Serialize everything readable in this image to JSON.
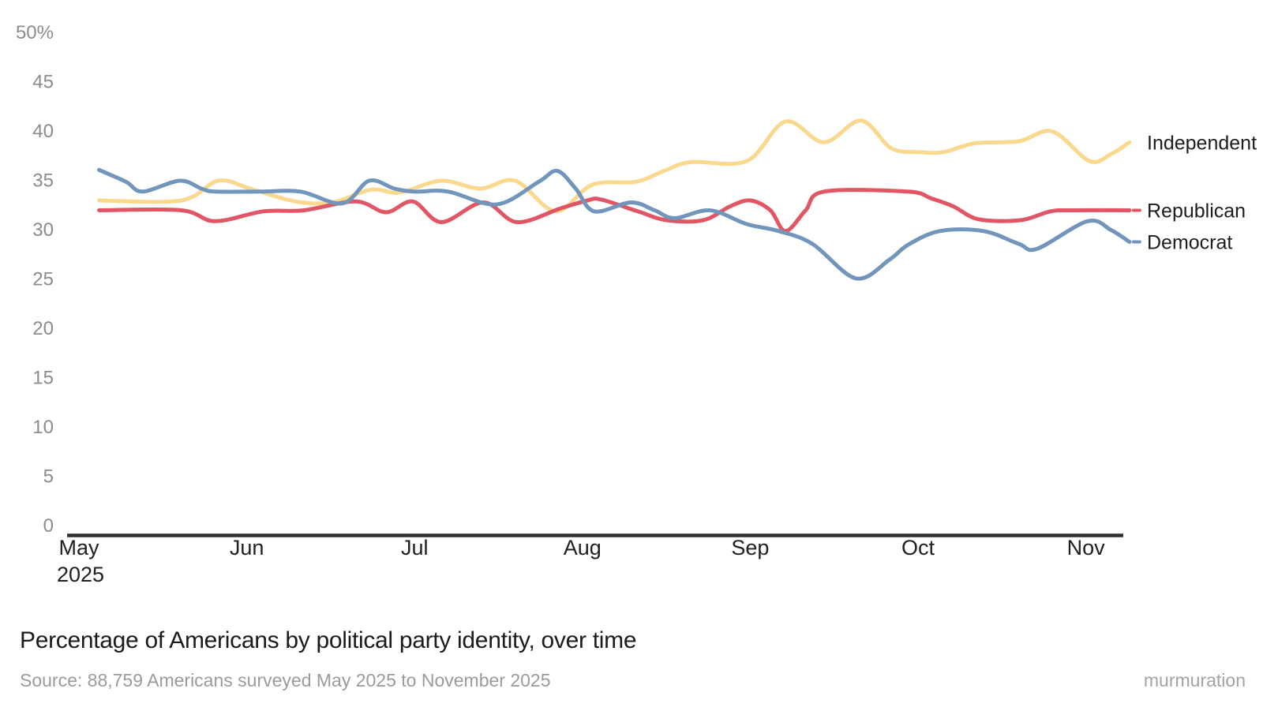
{
  "page": {
    "background": "#ffffff"
  },
  "chart_data": {
    "type": "line",
    "title": "Percentage of Americans by political party identity, over time",
    "source": "Source: 88,759 Americans surveyed May 2025 to November 2025",
    "branding": "murmuration",
    "grid": false,
    "legend_position": "right-of-line-ends",
    "x_axis": {
      "unit": "month",
      "tick_labels": [
        "May",
        "Jun",
        "Jul",
        "Aug",
        "Sep",
        "Oct",
        "Nov"
      ],
      "year_label": "2025",
      "range_months": [
        0,
        6.3
      ]
    },
    "y_axis": {
      "range": [
        0,
        50
      ],
      "ticks": [
        {
          "v": 0,
          "label": "0"
        },
        {
          "v": 5,
          "label": "5"
        },
        {
          "v": 10,
          "label": "10"
        },
        {
          "v": 15,
          "label": "15"
        },
        {
          "v": 20,
          "label": "20"
        },
        {
          "v": 25,
          "label": "25"
        },
        {
          "v": 30,
          "label": "30"
        },
        {
          "v": 35,
          "label": "35"
        },
        {
          "v": 40,
          "label": "40"
        },
        {
          "v": 45,
          "label": "45"
        },
        {
          "v": 50,
          "label": "50%"
        }
      ]
    },
    "colors": {
      "axis": "#303030",
      "y_tick_text": "#8c8c8c",
      "x_tick_text": "#202020",
      "series_label_text": "#1d1d1d"
    },
    "series": [
      {
        "name": "Independent",
        "color": "#FAD98F",
        "label_dash": false,
        "points": [
          [
            0.12,
            33.0
          ],
          [
            0.61,
            33.0
          ],
          [
            0.83,
            35.0
          ],
          [
            1.02,
            34.2
          ],
          [
            1.29,
            32.9
          ],
          [
            1.51,
            32.8
          ],
          [
            1.74,
            34.1
          ],
          [
            1.91,
            33.8
          ],
          [
            2.16,
            35.0
          ],
          [
            2.39,
            34.2
          ],
          [
            2.6,
            35.0
          ],
          [
            2.84,
            31.9
          ],
          [
            3.06,
            34.6
          ],
          [
            3.32,
            34.9
          ],
          [
            3.5,
            36.1
          ],
          [
            3.65,
            36.9
          ],
          [
            3.98,
            37.0
          ],
          [
            4.21,
            41.0
          ],
          [
            4.44,
            38.9
          ],
          [
            4.66,
            41.1
          ],
          [
            4.84,
            38.3
          ],
          [
            5.01,
            37.9
          ],
          [
            5.15,
            37.9
          ],
          [
            5.34,
            38.8
          ],
          [
            5.6,
            39.0
          ],
          [
            5.8,
            40.0
          ],
          [
            6.02,
            37.0
          ],
          [
            6.15,
            37.7
          ],
          [
            6.26,
            38.9
          ]
        ]
      },
      {
        "name": "Republican",
        "color": "#E25565",
        "label_dash": true,
        "points": [
          [
            0.12,
            32.0
          ],
          [
            0.61,
            32.0
          ],
          [
            0.81,
            30.9
          ],
          [
            1.1,
            31.9
          ],
          [
            1.34,
            32.0
          ],
          [
            1.65,
            32.9
          ],
          [
            1.83,
            31.8
          ],
          [
            1.99,
            32.9
          ],
          [
            2.16,
            30.8
          ],
          [
            2.41,
            32.8
          ],
          [
            2.61,
            30.8
          ],
          [
            2.87,
            32.2
          ],
          [
            3.03,
            33.0
          ],
          [
            3.11,
            33.1
          ],
          [
            3.33,
            31.9
          ],
          [
            3.5,
            31.0
          ],
          [
            3.72,
            31.0
          ],
          [
            3.88,
            32.4
          ],
          [
            4.0,
            33.0
          ],
          [
            4.12,
            32.0
          ],
          [
            4.21,
            29.9
          ],
          [
            4.33,
            32.0
          ],
          [
            4.44,
            33.9
          ],
          [
            4.94,
            33.9
          ],
          [
            5.08,
            33.2
          ],
          [
            5.21,
            32.4
          ],
          [
            5.36,
            31.1
          ],
          [
            5.61,
            31.0
          ],
          [
            5.79,
            31.9
          ],
          [
            5.93,
            32.0
          ],
          [
            6.26,
            32.0
          ]
        ]
      },
      {
        "name": "Democrat",
        "color": "#7195BB",
        "label_dash": true,
        "points": [
          [
            0.12,
            36.1
          ],
          [
            0.28,
            34.9
          ],
          [
            0.38,
            33.9
          ],
          [
            0.6,
            35.0
          ],
          [
            0.73,
            34.2
          ],
          [
            0.81,
            33.9
          ],
          [
            1.08,
            33.9
          ],
          [
            1.32,
            33.9
          ],
          [
            1.57,
            32.7
          ],
          [
            1.73,
            35.0
          ],
          [
            1.88,
            34.2
          ],
          [
            2.0,
            33.9
          ],
          [
            2.2,
            33.9
          ],
          [
            2.49,
            32.6
          ],
          [
            2.74,
            34.9
          ],
          [
            2.85,
            36.0
          ],
          [
            2.96,
            34.2
          ],
          [
            3.07,
            31.9
          ],
          [
            3.29,
            32.8
          ],
          [
            3.43,
            32.0
          ],
          [
            3.55,
            31.2
          ],
          [
            3.76,
            32.0
          ],
          [
            3.98,
            30.6
          ],
          [
            4.17,
            29.9
          ],
          [
            4.37,
            28.6
          ],
          [
            4.63,
            25.1
          ],
          [
            4.83,
            27.0
          ],
          [
            4.94,
            28.5
          ],
          [
            5.13,
            29.9
          ],
          [
            5.39,
            29.9
          ],
          [
            5.6,
            28.6
          ],
          [
            5.71,
            28.1
          ],
          [
            6.01,
            30.9
          ],
          [
            6.15,
            30.0
          ],
          [
            6.26,
            28.8
          ]
        ]
      }
    ]
  }
}
